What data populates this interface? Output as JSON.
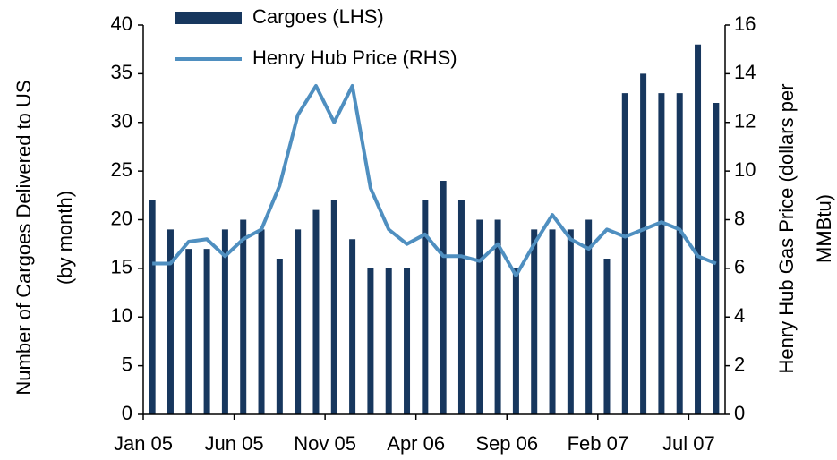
{
  "chart_data": {
    "type": "bar",
    "y_label": [
      "Number of Cargoes Delivered to US",
      "(by month)"
    ],
    "y2_label": [
      "Henry Hub Gas Price (dollars per",
      "MMBtu)"
    ],
    "categories": [
      "Jan 05",
      null,
      null,
      null,
      null,
      "Jun 05",
      null,
      null,
      null,
      null,
      "Nov 05",
      null,
      null,
      null,
      null,
      "Apr 06",
      null,
      null,
      null,
      null,
      "Sep 06",
      null,
      null,
      null,
      null,
      "Feb 07",
      null,
      null,
      null,
      null,
      "Jul 07",
      null
    ],
    "series": [
      {
        "name": "Cargoes (LHS)",
        "type": "bar",
        "color": "#17375e",
        "values": [
          22,
          19,
          17,
          17,
          19,
          20,
          19,
          16,
          19,
          21,
          22,
          18,
          15,
          15,
          15,
          22,
          24,
          22,
          20,
          20,
          15,
          19,
          19,
          19,
          20,
          16,
          33,
          35,
          33,
          33,
          38,
          32
        ]
      },
      {
        "name": "Henry Hub Price (RHS)",
        "type": "line",
        "axis": "y2",
        "color": "#4f8fc0",
        "values": [
          6.2,
          6.2,
          7.1,
          7.2,
          6.5,
          7.2,
          7.6,
          9.4,
          12.3,
          13.5,
          12.0,
          13.5,
          9.3,
          7.6,
          7.0,
          7.4,
          6.5,
          6.5,
          6.3,
          7.0,
          5.7,
          7.0,
          8.2,
          7.2,
          6.8,
          7.6,
          7.3,
          7.6,
          7.9,
          7.6,
          6.5,
          6.2
        ]
      }
    ],
    "ylim": [
      0,
      40
    ],
    "yticks": [
      0,
      5,
      10,
      15,
      20,
      25,
      30,
      35,
      40
    ],
    "y2lim": [
      0,
      16
    ],
    "y2ticks": [
      0,
      2,
      4,
      6,
      8,
      10,
      12,
      14,
      16
    ],
    "legend": "top"
  }
}
